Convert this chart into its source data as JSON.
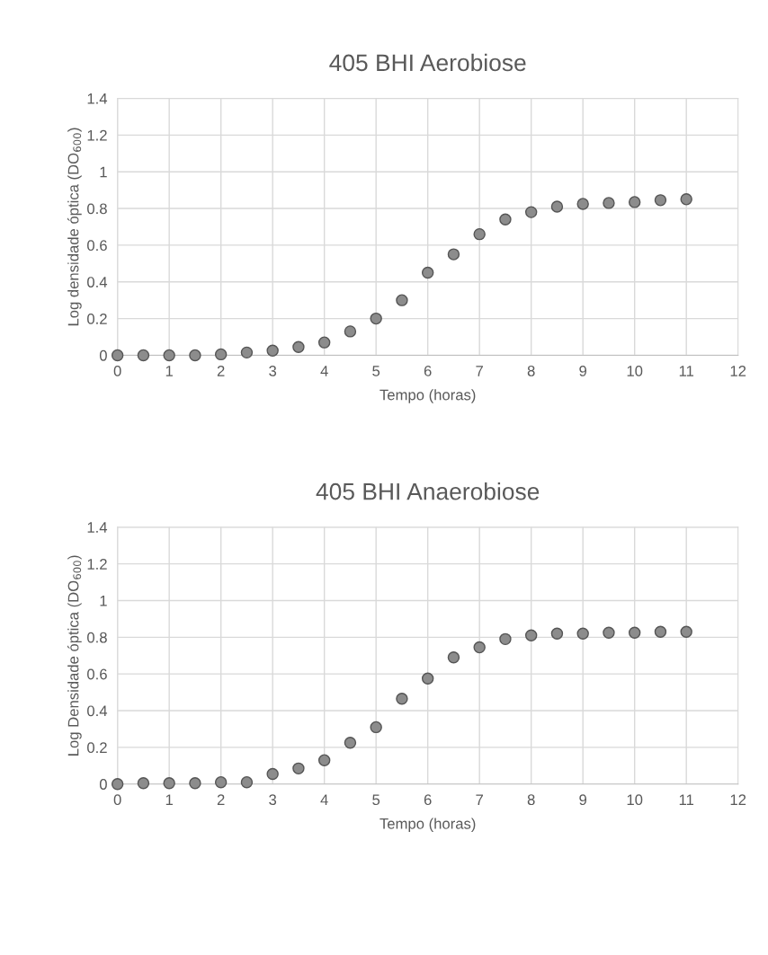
{
  "chart_data": [
    {
      "type": "scatter",
      "title": "405 BHI Aerobiose",
      "xlabel": "Tempo (horas)",
      "ylabel": "Log densidade óptica (DO$_{600}$)",
      "x": [
        0,
        0.5,
        1,
        1.5,
        2,
        2.5,
        3,
        3.5,
        4,
        4.5,
        5,
        5.5,
        6,
        6.5,
        7,
        7.5,
        8,
        8.5,
        9,
        9.5,
        10,
        10.5,
        11
      ],
      "series": [
        {
          "color": "#8c8c8c",
          "values": [
            0,
            0,
            0,
            0,
            0.005,
            0.015,
            0.025,
            0.045,
            0.07,
            0.13,
            0.2,
            0.3,
            0.45,
            0.55,
            0.66,
            0.74,
            0.78,
            0.81,
            0.825,
            0.83,
            0.835,
            0.845,
            0.85
          ]
        }
      ],
      "xlim": [
        0,
        12
      ],
      "xticks": [
        0,
        1,
        2,
        3,
        4,
        5,
        6,
        7,
        8,
        9,
        10,
        11,
        12
      ],
      "ylim": [
        0,
        1.4
      ],
      "yticks": [
        0,
        0.2,
        0.4,
        0.6,
        0.8,
        1,
        1.2,
        1.4
      ],
      "grid": true,
      "marker": "circle"
    },
    {
      "type": "scatter",
      "title": "405 BHI Anaerobiose",
      "xlabel": "Tempo (horas)",
      "ylabel": "Log Densidade óptica (DO$_{600}$)",
      "x": [
        0,
        0.5,
        1,
        1.5,
        2,
        2.5,
        3,
        3.5,
        4,
        4.5,
        5,
        5.5,
        6,
        6.5,
        7,
        7.5,
        8,
        8.5,
        9,
        9.5,
        10,
        10.5,
        11
      ],
      "series": [
        {
          "color": "#8c8c8c",
          "values": [
            0,
            0.005,
            0.005,
            0.005,
            0.01,
            0.01,
            0.055,
            0.085,
            0.13,
            0.225,
            0.31,
            0.465,
            0.575,
            0.69,
            0.745,
            0.79,
            0.81,
            0.82,
            0.82,
            0.825,
            0.825,
            0.83,
            0.83
          ]
        }
      ],
      "xlim": [
        0,
        12
      ],
      "xticks": [
        0,
        1,
        2,
        3,
        4,
        5,
        6,
        7,
        8,
        9,
        10,
        11,
        12
      ],
      "ylim": [
        0,
        1.4
      ],
      "yticks": [
        0,
        0.2,
        0.4,
        0.6,
        0.8,
        1,
        1.2,
        1.4
      ],
      "grid": true,
      "marker": "circle"
    }
  ]
}
